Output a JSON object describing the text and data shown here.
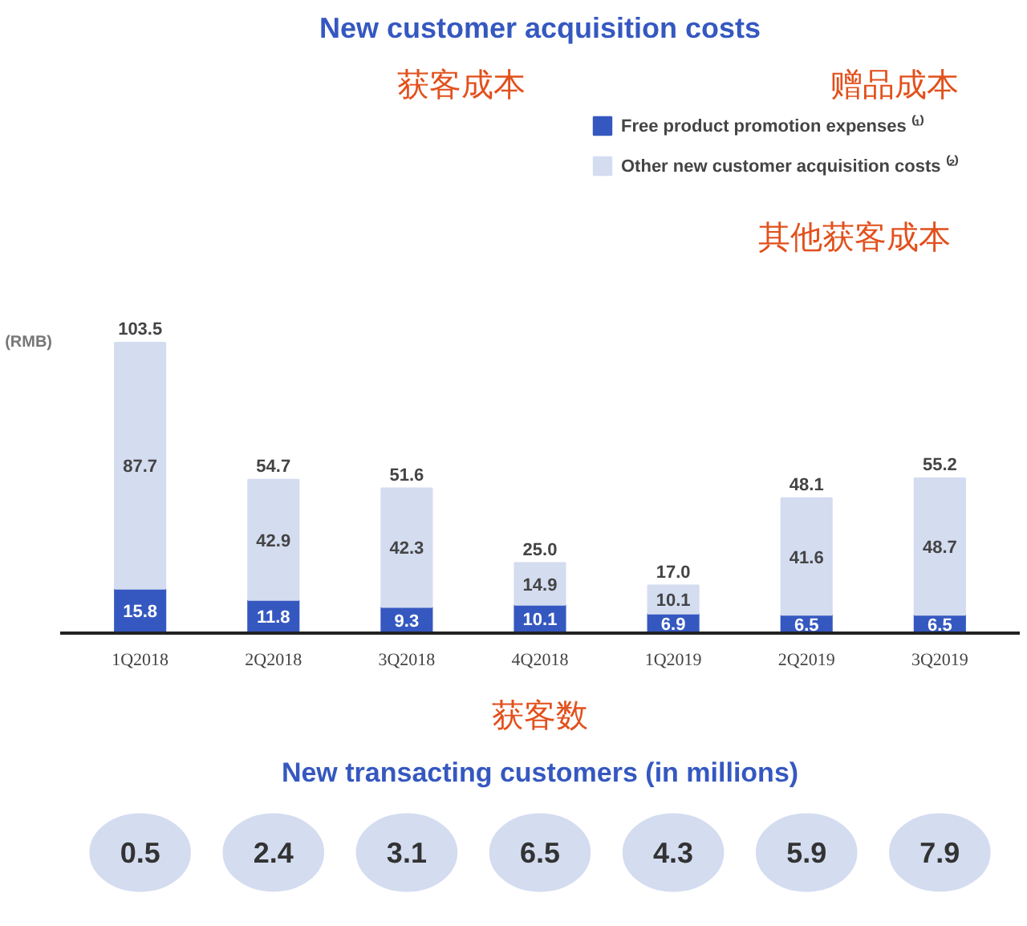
{
  "chart_data": [
    {
      "type": "bar",
      "title": "New customer acquisition costs",
      "ylabel": "(RMB)",
      "categories": [
        "1Q2018",
        "2Q2018",
        "3Q2018",
        "4Q2018",
        "1Q2019",
        "2Q2019",
        "3Q2019"
      ],
      "stacked": true,
      "data_labels": true,
      "legend": "top right",
      "series": [
        {
          "name": "Free product promotion expenses ⁽¹⁾",
          "color": "#3558c0",
          "values": [
            15.8,
            11.8,
            9.3,
            10.1,
            6.9,
            6.5,
            6.5
          ]
        },
        {
          "name": "Other new customer acquisition costs ⁽²⁾",
          "color": "#d4dcf0",
          "values": [
            87.7,
            42.9,
            42.3,
            14.9,
            10.1,
            41.6,
            48.7
          ]
        }
      ],
      "totals": [
        "103.5",
        "54.7",
        "51.6",
        "25.0",
        "17.0",
        "48.1",
        "55.2"
      ],
      "annotations": [
        "获客成本",
        "赠品成本",
        "其他获客成本"
      ]
    },
    {
      "type": "other",
      "title": "New transacting customers (in millions)",
      "subtitle": "获客数",
      "categories": [
        null,
        null,
        null,
        null,
        null,
        null,
        null
      ],
      "values": [
        0.5,
        2.4,
        3.1,
        6.5,
        4.3,
        5.9,
        7.9
      ],
      "data_labels": true,
      "color": "#d4dcf0"
    }
  ]
}
